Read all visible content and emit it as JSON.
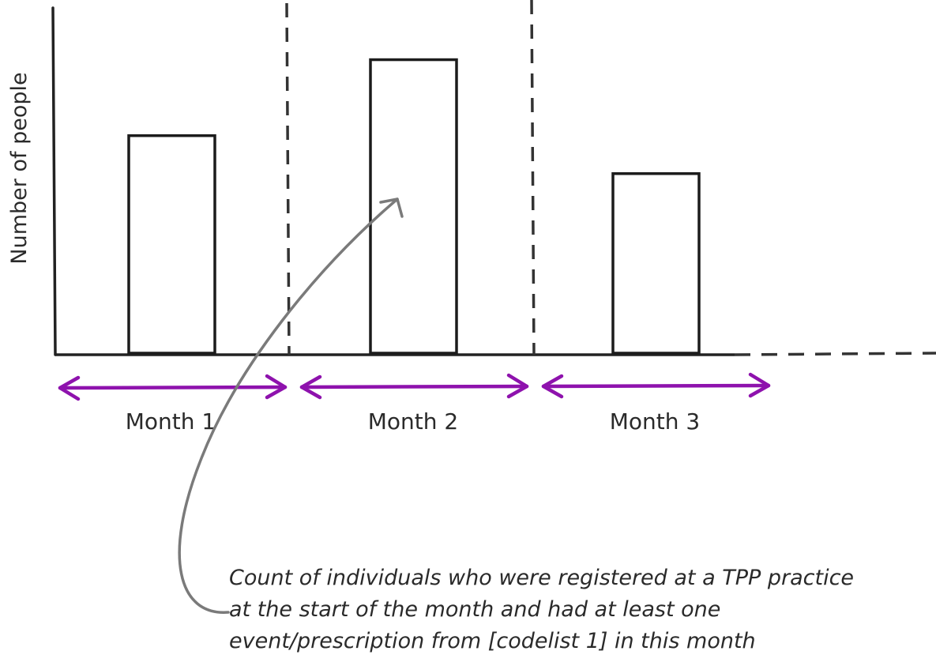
{
  "ylabel": "Number of people",
  "months": [
    {
      "label": "Month 1",
      "relative_count": 0.63
    },
    {
      "label": "Month 2",
      "relative_count": 0.85
    },
    {
      "label": "Month 3",
      "relative_count": 0.52
    }
  ],
  "caption": {
    "lines": [
      "Count of individuals who were registered at a TPP practice",
      "at the start of the month and had at least one",
      "event/prescription from [codelist 1] in this month"
    ]
  },
  "colors": {
    "axis": "#222222",
    "bar_stroke": "#1c1c1c",
    "divider": "#333333",
    "month_arrow": "#8e12ad",
    "pointer_arrow": "#7a7a7a",
    "text": "#2a2a2a"
  },
  "icons": {
    "month_arrow": "double-headed-arrow",
    "pointer": "curved-arrow"
  }
}
